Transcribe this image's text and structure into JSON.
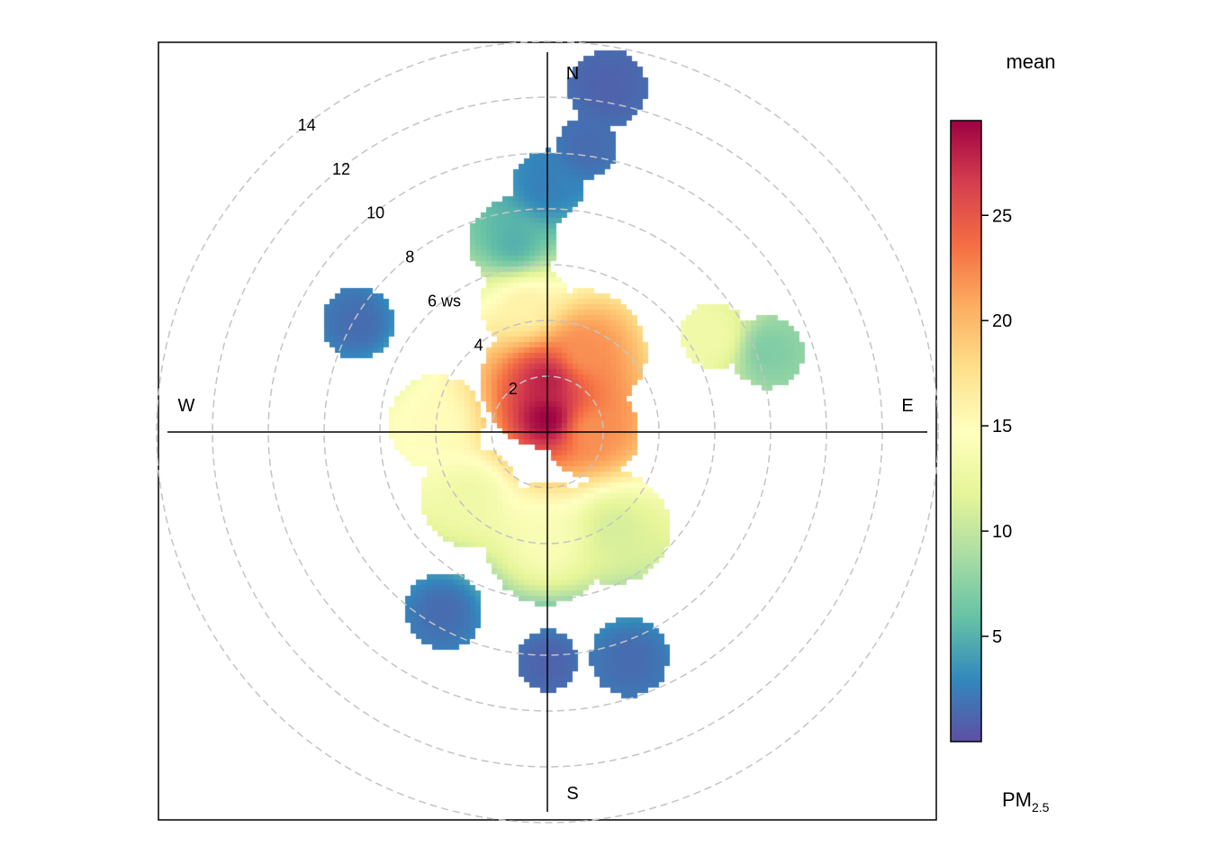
{
  "chart_data": {
    "type": "heatmap",
    "subtype": "polar",
    "title": "",
    "directions": [
      "N",
      "E",
      "S",
      "W"
    ],
    "radial_axis": {
      "label": "ws",
      "ticks": [
        2,
        4,
        6,
        8,
        10,
        12,
        14
      ],
      "tick_labels": [
        "2",
        "4",
        "6 ws",
        "8",
        "10",
        "12",
        "14"
      ],
      "max": 14
    },
    "grid": true,
    "colorbar": {
      "title": "mean",
      "pollutant_label": "PM",
      "pollutant_subscript": "2.5",
      "ticks": [
        5,
        10,
        15,
        20,
        25
      ],
      "tick_labels": [
        "5",
        "10",
        "15",
        "20",
        "25"
      ],
      "range": [
        0,
        29.5
      ],
      "palette": [
        "#5E4FA2",
        "#3288BD",
        "#66C2A5",
        "#ABDDA4",
        "#E6F598",
        "#FFFFBF",
        "#FEE08B",
        "#FDAE61",
        "#F46D43",
        "#D53E4F",
        "#9E0142"
      ]
    },
    "blobs": [
      {
        "direction_deg": 0,
        "ws": 0.5,
        "ws_radius": 0.8,
        "mean": 29.5
      },
      {
        "direction_deg": 0,
        "ws": 1.8,
        "ws_radius": 2.4,
        "mean": 28
      },
      {
        "direction_deg": 90,
        "ws": 1.6,
        "ws_radius": 1.7,
        "mean": 22
      },
      {
        "direction_deg": 25,
        "ws": 3.2,
        "ws_radius": 2.2,
        "mean": 22
      },
      {
        "direction_deg": 350,
        "ws": 4.6,
        "ws_radius": 1.6,
        "mean": 16
      },
      {
        "direction_deg": 275,
        "ws": 4.0,
        "ws_radius": 1.7,
        "mean": 15
      },
      {
        "direction_deg": 230,
        "ws": 3.6,
        "ws_radius": 1.8,
        "mean": 13
      },
      {
        "direction_deg": 180,
        "ws": 4.0,
        "ws_radius": 2.2,
        "mean": 14
      },
      {
        "direction_deg": 145,
        "ws": 4.2,
        "ws_radius": 2.0,
        "mean": 11
      },
      {
        "direction_deg": 350,
        "ws": 6.9,
        "ws_radius": 1.6,
        "mean": 5
      },
      {
        "direction_deg": 300,
        "ws": 7.8,
        "ws_radius": 1.3,
        "mean": 1.5
      },
      {
        "direction_deg": 0,
        "ws": 8.8,
        "ws_radius": 1.3,
        "mean": 2.5
      },
      {
        "direction_deg": 8,
        "ws": 10.3,
        "ws_radius": 1.1,
        "mean": 1.5
      },
      {
        "direction_deg": 10,
        "ws": 12.5,
        "ws_radius": 1.4,
        "mean": 1
      },
      {
        "direction_deg": 60,
        "ws": 6.9,
        "ws_radius": 1.2,
        "mean": 13
      },
      {
        "direction_deg": 70,
        "ws": 8.4,
        "ws_radius": 1.3,
        "mean": 7
      },
      {
        "direction_deg": 210,
        "ws": 7.4,
        "ws_radius": 1.4,
        "mean": 1.5
      },
      {
        "direction_deg": 180,
        "ws": 8.2,
        "ws_radius": 1.1,
        "mean": 1
      },
      {
        "direction_deg": 160,
        "ws": 8.6,
        "ws_radius": 1.4,
        "mean": 1.5
      }
    ]
  }
}
